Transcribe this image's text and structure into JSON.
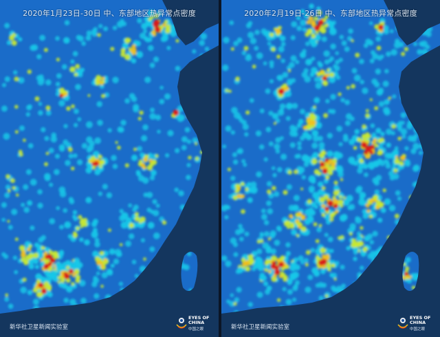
{
  "left_panel": {
    "caption": "2020年1月23日-30日  中、东部地区热异常点密度",
    "credit": "新华社卫星新闻实验室",
    "logo": {
      "title_line1": "EYES OF",
      "title_line2": "CHINA",
      "subtitle": "中国之眼",
      "icon": "eye-logo-icon"
    }
  },
  "right_panel": {
    "caption": "2020年2月19日-26日  中、东部地区热异常点密度",
    "credit": "新华社卫星新闻实验室",
    "logo": {
      "title_line1": "EYES OF",
      "title_line2": "CHINA",
      "subtitle": "中国之眼",
      "icon": "eye-logo-icon"
    }
  },
  "colors": {
    "land": "#1a6cc9",
    "sea": "#14365e",
    "low": "#18c8e8",
    "mid": "#c8e832",
    "high": "#f0c020",
    "peak": "#d81e1e"
  }
}
